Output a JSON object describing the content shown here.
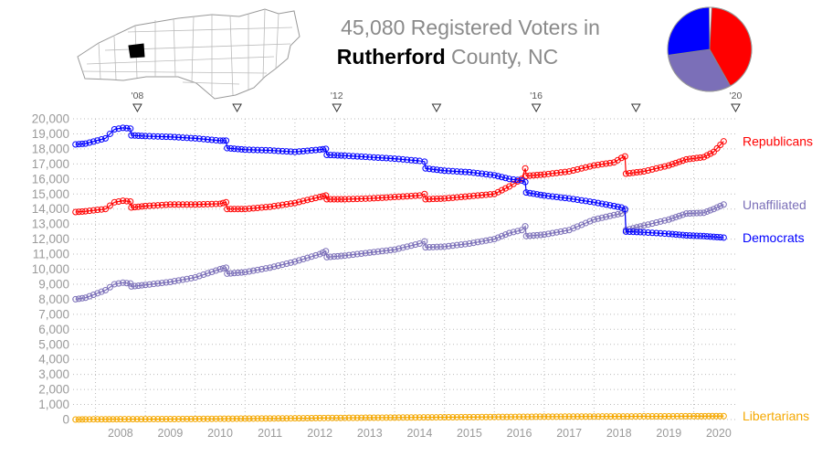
{
  "title": {
    "line1": "45,080 Registered Voters in",
    "county": "Rutherford",
    "line2_rest": " County, NC"
  },
  "map_icon": "north-carolina-county-map",
  "pie_icon": "party-share-pie",
  "pie_shares": [
    {
      "party": "Republicans",
      "color": "#ff0000",
      "fraction": 0.41
    },
    {
      "party": "Unaffiliated",
      "color": "#7b6fb8",
      "fraction": 0.31
    },
    {
      "party": "Democrats",
      "color": "#0000ff",
      "fraction": 0.27
    }
  ],
  "chart_data": {
    "type": "line",
    "xlim": [
      2007.55,
      2020.85
    ],
    "ylim": [
      0,
      20000
    ],
    "grid": true,
    "yticks": [
      "0",
      "1,000",
      "2,000",
      "3,000",
      "4,000",
      "5,000",
      "6,000",
      "7,000",
      "8,000",
      "9,000",
      "10,000",
      "11,000",
      "12,000",
      "13,000",
      "14,000",
      "15,000",
      "16,000",
      "17,000",
      "18,000",
      "19,000",
      "20,000"
    ],
    "ytick_values": [
      0,
      1000,
      2000,
      3000,
      4000,
      5000,
      6000,
      7000,
      8000,
      9000,
      10000,
      11000,
      12000,
      13000,
      14000,
      15000,
      16000,
      17000,
      18000,
      19000,
      20000
    ],
    "xticks": [
      "2008",
      "2009",
      "2010",
      "2011",
      "2012",
      "2013",
      "2014",
      "2015",
      "2016",
      "2017",
      "2018",
      "2019",
      "2020"
    ],
    "election_markers": [
      {
        "x": 2008.84,
        "label": "'08"
      },
      {
        "x": 2010.84,
        "label": ""
      },
      {
        "x": 2012.84,
        "label": "'12"
      },
      {
        "x": 2014.84,
        "label": ""
      },
      {
        "x": 2016.84,
        "label": "'16"
      },
      {
        "x": 2018.84,
        "label": ""
      },
      {
        "x": 2020.84,
        "label": "'20"
      }
    ],
    "series": [
      {
        "name": "Republicans",
        "color": "#ff0000",
        "x": [
          2007.6,
          2007.8,
          2008.2,
          2008.38,
          2008.55,
          2008.7,
          2008.72,
          2009.0,
          2009.5,
          2010.0,
          2010.5,
          2010.62,
          2010.64,
          2011.0,
          2011.5,
          2012.0,
          2012.5,
          2012.62,
          2012.64,
          2013.0,
          2013.5,
          2014.0,
          2014.5,
          2014.6,
          2014.62,
          2015.0,
          2015.5,
          2016.0,
          2016.3,
          2016.55,
          2016.62,
          2016.64,
          2017.0,
          2017.5,
          2018.0,
          2018.4,
          2018.55,
          2018.62,
          2018.64,
          2019.0,
          2019.5,
          2019.85,
          2020.2,
          2020.4,
          2020.6
        ],
        "y": [
          13800,
          13850,
          14000,
          14450,
          14550,
          14500,
          14100,
          14200,
          14300,
          14300,
          14350,
          14450,
          14000,
          14000,
          14150,
          14400,
          14800,
          14900,
          14650,
          14650,
          14700,
          14800,
          14900,
          15000,
          14650,
          14700,
          14850,
          15000,
          15500,
          16000,
          16700,
          16200,
          16300,
          16500,
          16900,
          17100,
          17400,
          17500,
          16350,
          16500,
          16900,
          17300,
          17450,
          17800,
          18500
        ]
      },
      {
        "name": "Unaffiliated",
        "color": "#7b6fb8",
        "x": [
          2007.6,
          2007.8,
          2008.2,
          2008.38,
          2008.55,
          2008.7,
          2008.72,
          2009.0,
          2009.5,
          2010.0,
          2010.5,
          2010.62,
          2010.64,
          2011.0,
          2011.5,
          2012.0,
          2012.5,
          2012.62,
          2012.64,
          2013.0,
          2013.5,
          2014.0,
          2014.5,
          2014.6,
          2014.62,
          2015.0,
          2015.5,
          2016.0,
          2016.3,
          2016.55,
          2016.62,
          2016.64,
          2017.0,
          2017.5,
          2018.0,
          2018.4,
          2018.55,
          2018.62,
          2018.64,
          2019.0,
          2019.5,
          2019.85,
          2020.2,
          2020.4,
          2020.6
        ],
        "y": [
          8000,
          8100,
          8600,
          9000,
          9100,
          9050,
          8850,
          8950,
          9150,
          9450,
          10000,
          10100,
          9700,
          9800,
          10100,
          10500,
          11000,
          11200,
          10800,
          10900,
          11100,
          11300,
          11700,
          11850,
          11450,
          11500,
          11700,
          12000,
          12400,
          12600,
          12850,
          12200,
          12300,
          12600,
          13300,
          13600,
          13700,
          13900,
          12600,
          12900,
          13300,
          13700,
          13750,
          14000,
          14300
        ]
      },
      {
        "name": "Democrats",
        "color": "#0000ff",
        "x": [
          2007.6,
          2007.8,
          2008.2,
          2008.38,
          2008.55,
          2008.7,
          2008.72,
          2009.0,
          2009.5,
          2010.0,
          2010.5,
          2010.62,
          2010.64,
          2011.0,
          2011.5,
          2012.0,
          2012.5,
          2012.62,
          2012.64,
          2013.0,
          2013.5,
          2014.0,
          2014.5,
          2014.6,
          2014.62,
          2015.0,
          2015.5,
          2016.0,
          2016.3,
          2016.55,
          2016.62,
          2016.64,
          2017.0,
          2017.5,
          2018.0,
          2018.4,
          2018.55,
          2018.62,
          2018.64,
          2019.0,
          2019.5,
          2019.85,
          2020.2,
          2020.4,
          2020.6
        ],
        "y": [
          18300,
          18350,
          18700,
          19300,
          19400,
          19350,
          18900,
          18850,
          18800,
          18700,
          18550,
          18550,
          18050,
          17950,
          17900,
          17800,
          17950,
          18000,
          17600,
          17550,
          17450,
          17350,
          17200,
          17150,
          16700,
          16550,
          16450,
          16250,
          16000,
          15900,
          15800,
          15100,
          14900,
          14700,
          14450,
          14200,
          14100,
          14000,
          12500,
          12450,
          12350,
          12250,
          12200,
          12150,
          12100
        ]
      },
      {
        "name": "Libertarians",
        "color": "#f5a800",
        "x": [
          2007.6,
          2007.8,
          2008.2,
          2008.5,
          2009.0,
          2009.5,
          2010.0,
          2010.5,
          2011.0,
          2011.5,
          2012.0,
          2012.5,
          2013.0,
          2013.5,
          2014.0,
          2014.5,
          2015.0,
          2015.5,
          2016.0,
          2016.5,
          2017.0,
          2017.5,
          2018.0,
          2018.5,
          2019.0,
          2019.5,
          2020.0,
          2020.6
        ],
        "y": [
          0,
          10,
          15,
          20,
          25,
          30,
          40,
          50,
          60,
          70,
          80,
          100,
          110,
          120,
          130,
          140,
          150,
          160,
          170,
          180,
          190,
          195,
          200,
          205,
          210,
          215,
          220,
          230
        ]
      }
    ]
  }
}
